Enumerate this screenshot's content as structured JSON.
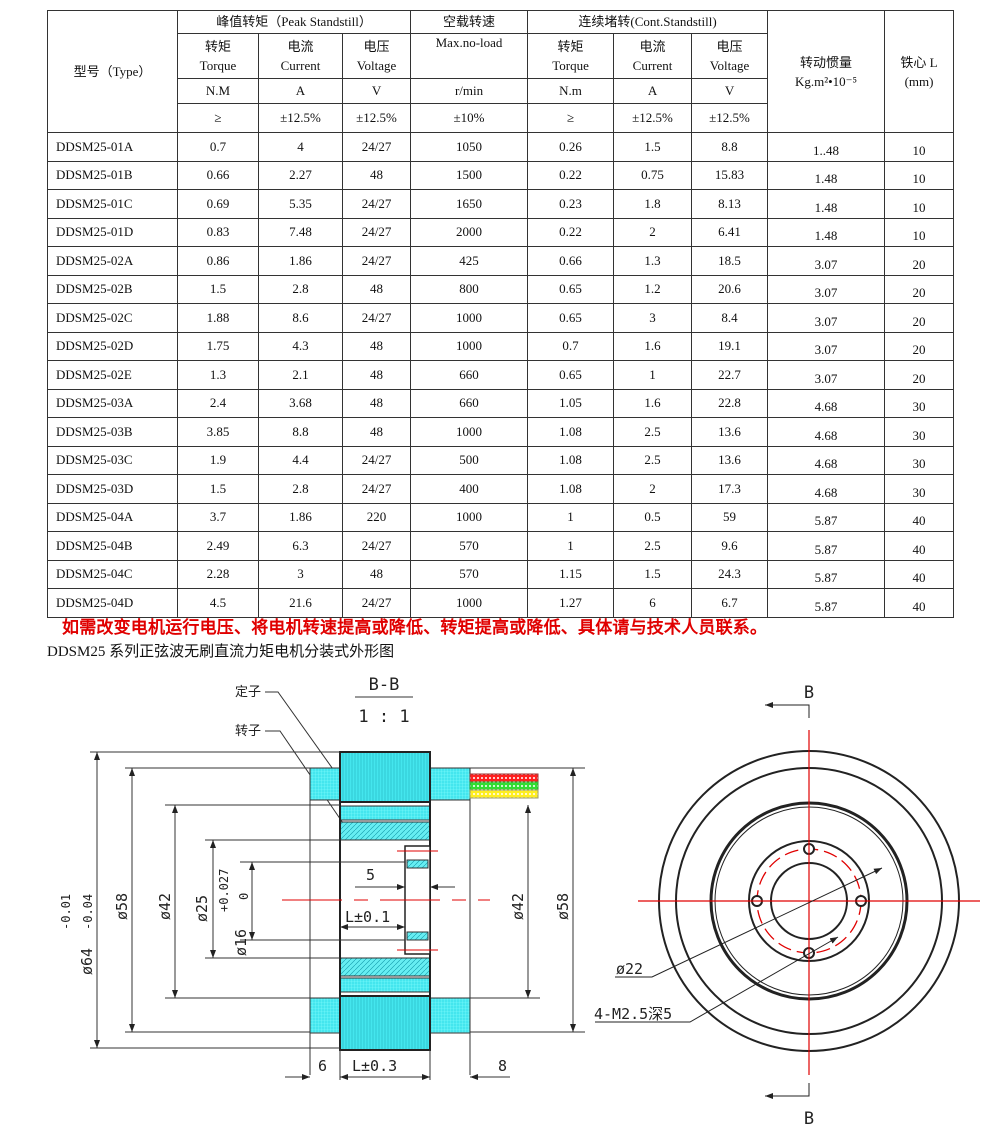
{
  "table": {
    "header": {
      "type": "型号（Type）",
      "peak_group": "峰值转矩（Peak Standstill）",
      "noload_group": "空载转速",
      "noload_sub": "Max.no-load",
      "cont_group": "连续堵转(Cont.Standstill)",
      "inertia": "转动惯量",
      "inertia_unit": "Kg.m²•10⁻⁵",
      "core": "铁心 L",
      "core_unit": "(mm)",
      "peak_cols": [
        {
          "cn": "转矩",
          "en": "Torque",
          "unit": "N.M",
          "tol": "≥"
        },
        {
          "cn": "电流",
          "en": "Current",
          "unit": "A",
          "tol": "±12.5%"
        },
        {
          "cn": "电压",
          "en": "Voltage",
          "unit": "V",
          "tol": "±12.5%"
        }
      ],
      "noload_unit": "r/min",
      "noload_tol": "±10%",
      "cont_cols": [
        {
          "cn": "转矩",
          "en": "Torque",
          "unit": "N.m",
          "tol": "≥"
        },
        {
          "cn": "电流",
          "en": "Current",
          "unit": "A",
          "tol": "±12.5%"
        },
        {
          "cn": "电压",
          "en": "Voltage",
          "unit": "V",
          "tol": "±12.5%"
        }
      ]
    },
    "rows": [
      [
        "DDSM25-01A",
        "0.7",
        "4",
        "24/27",
        "1050",
        "0.26",
        "1.5",
        "8.8",
        "1..48",
        "10"
      ],
      [
        "DDSM25-01B",
        "0.66",
        "2.27",
        "48",
        "1500",
        "0.22",
        "0.75",
        "15.83",
        "1.48",
        "10"
      ],
      [
        "DDSM25-01C",
        "0.69",
        "5.35",
        "24/27",
        "1650",
        "0.23",
        "1.8",
        "8.13",
        "1.48",
        "10"
      ],
      [
        "DDSM25-01D",
        "0.83",
        "7.48",
        "24/27",
        "2000",
        "0.22",
        "2",
        "6.41",
        "1.48",
        "10"
      ],
      [
        "DDSM25-02A",
        "0.86",
        "1.86",
        "24/27",
        "425",
        "0.66",
        "1.3",
        "18.5",
        "3.07",
        "20"
      ],
      [
        "DDSM25-02B",
        "1.5",
        "2.8",
        "48",
        "800",
        "0.65",
        "1.2",
        "20.6",
        "3.07",
        "20"
      ],
      [
        "DDSM25-02C",
        "1.88",
        "8.6",
        "24/27",
        "1000",
        "0.65",
        "3",
        "8.4",
        "3.07",
        "20"
      ],
      [
        "DDSM25-02D",
        "1.75",
        "4.3",
        "48",
        "1000",
        "0.7",
        "1.6",
        "19.1",
        "3.07",
        "20"
      ],
      [
        "DDSM25-02E",
        "1.3",
        "2.1",
        "48",
        "660",
        "0.65",
        "1",
        "22.7",
        "3.07",
        "20"
      ],
      [
        "DDSM25-03A",
        "2.4",
        "3.68",
        "48",
        "660",
        "1.05",
        "1.6",
        "22.8",
        "4.68",
        "30"
      ],
      [
        "DDSM25-03B",
        "3.85",
        "8.8",
        "48",
        "1000",
        "1.08",
        "2.5",
        "13.6",
        "4.68",
        "30"
      ],
      [
        "DDSM25-03C",
        "1.9",
        "4.4",
        "24/27",
        "500",
        "1.08",
        "2.5",
        "13.6",
        "4.68",
        "30"
      ],
      [
        "DDSM25-03D",
        "1.5",
        "2.8",
        "24/27",
        "400",
        "1.08",
        "2",
        "17.3",
        "4.68",
        "30"
      ],
      [
        "DDSM25-04A",
        "3.7",
        "1.86",
        "220",
        "1000",
        "1",
        "0.5",
        "59",
        "5.87",
        "40"
      ],
      [
        "DDSM25-04B",
        "2.49",
        "6.3",
        "24/27",
        "570",
        "1",
        "2.5",
        "9.6",
        "5.87",
        "40"
      ],
      [
        "DDSM25-04C",
        "2.28",
        "3",
        "48",
        "570",
        "1.15",
        "1.5",
        "24.3",
        "5.87",
        "40"
      ],
      [
        "DDSM25-04D",
        "4.5",
        "21.6",
        "24/27",
        "1000",
        "1.27",
        "6",
        "6.7",
        "5.87",
        "40"
      ]
    ]
  },
  "note": "如需改变电机运行电压、将电机转速提高或降低、转矩提高或降低、具体请与技术人员联系。",
  "note_color": "#e00000",
  "drawing": {
    "title": "DDSM25 系列正弦波无刷直流力矩电机分装式外形图",
    "section_label": "B-B",
    "scale": "1 : 1",
    "stator_label": "定子",
    "rotor_label": "转子",
    "dims": {
      "d64": "ø64",
      "d64_tol_upper": "-0.01",
      "d64_tol_lower": "-0.04",
      "d58": "ø58",
      "d42": "ø42",
      "d25": "ø25",
      "d16": "ø16",
      "d16_tol_upper": "+0.027",
      "d16_tol_lower": "0",
      "five": "5",
      "l01": "L±0.1",
      "six": "6",
      "l03": "L±0.3",
      "eight": "8",
      "d42_right": "ø42",
      "d58_right": "ø58",
      "d22": "ø22",
      "holes": "4-M2.5深5",
      "b_top": "B",
      "b_bottom": "B"
    },
    "colors": {
      "cyan": "#33e0e8",
      "centerline": "#e00000",
      "wire_red": "#ff2020",
      "wire_green": "#33dd33",
      "wire_yellow": "#ffee22"
    }
  }
}
